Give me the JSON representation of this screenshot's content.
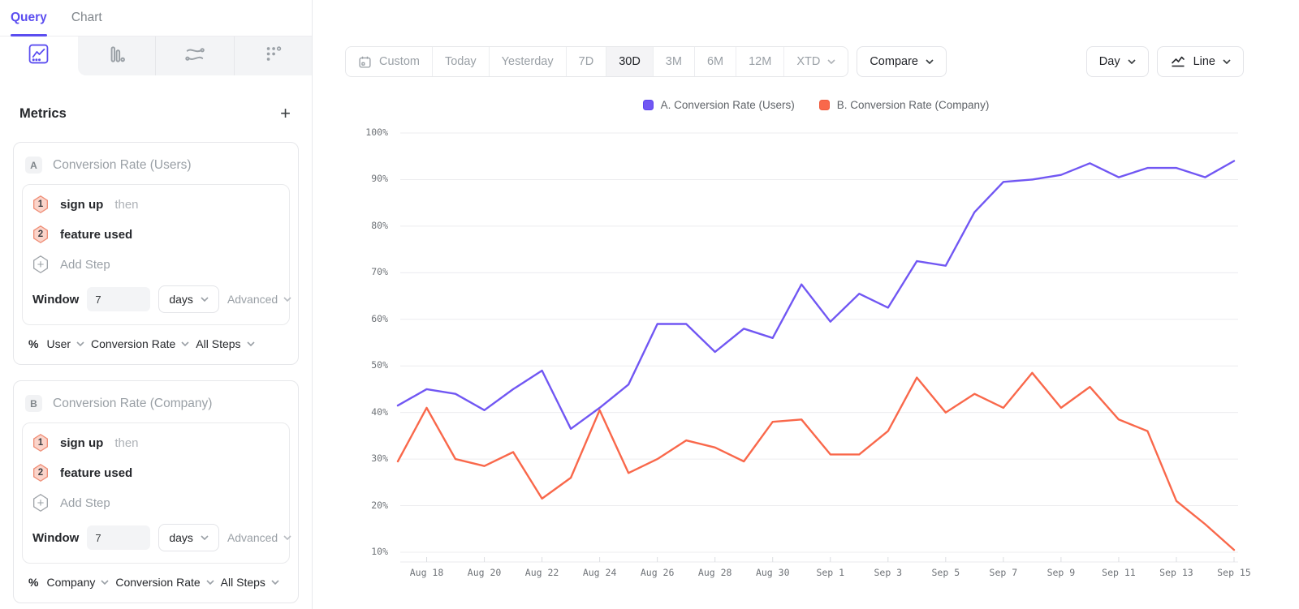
{
  "colors": {
    "accent_purple": "#5b4df0",
    "series_a": "#7157f3",
    "series_b": "#f9684b",
    "grid": "#ececef",
    "axis": "#e8e9ec"
  },
  "sidebar": {
    "tabs": [
      {
        "label": "Query"
      },
      {
        "label": "Chart"
      }
    ],
    "active_tab": "Query",
    "chart_type_tabs": [
      "line-chart",
      "bar-chart",
      "flow-chart",
      "scatter-chart"
    ],
    "metrics": {
      "title": "Metrics",
      "add_label": "+",
      "cards": [
        {
          "badge": "A",
          "title": "Conversion Rate (Users)",
          "steps": [
            {
              "num": "1",
              "label": "sign up",
              "suffix": "then"
            },
            {
              "num": "2",
              "label": "feature used",
              "suffix": ""
            }
          ],
          "add_step": "Add Step",
          "window": {
            "label": "Window",
            "value": "7",
            "unit": "days",
            "advanced": "Advanced"
          },
          "measure": {
            "prefix": "%",
            "entity": "User",
            "metric": "Conversion Rate",
            "scope": "All Steps"
          }
        },
        {
          "badge": "B",
          "title": "Conversion Rate (Company)",
          "steps": [
            {
              "num": "1",
              "label": "sign up",
              "suffix": "then"
            },
            {
              "num": "2",
              "label": "feature used",
              "suffix": ""
            }
          ],
          "add_step": "Add Step",
          "window": {
            "label": "Window",
            "value": "7",
            "unit": "days",
            "advanced": "Advanced"
          },
          "measure": {
            "prefix": "%",
            "entity": "Company",
            "metric": "Conversion Rate",
            "scope": "All Steps"
          }
        }
      ]
    }
  },
  "toolbar": {
    "ranges": [
      {
        "label": "Custom",
        "icon": "calendar"
      },
      {
        "label": "Today"
      },
      {
        "label": "Yesterday"
      },
      {
        "label": "7D"
      },
      {
        "label": "30D"
      },
      {
        "label": "3M"
      },
      {
        "label": "6M"
      },
      {
        "label": "12M"
      },
      {
        "label": "XTD",
        "chevron": true
      }
    ],
    "selected_range": "30D",
    "compare_label": "Compare",
    "granularity_label": "Day",
    "chart_style_label": "Line"
  },
  "legend": [
    {
      "label": "A. Conversion Rate (Users)",
      "color": "#7157f3",
      "border": "#5c43ee"
    },
    {
      "label": "B. Conversion Rate (Company)",
      "color": "#f9684b",
      "border": "#ef5a3c"
    }
  ],
  "chart_data": {
    "type": "line",
    "title": "",
    "x": [
      "Aug 17",
      "Aug 18",
      "Aug 19",
      "Aug 20",
      "Aug 21",
      "Aug 22",
      "Aug 23",
      "Aug 24",
      "Aug 25",
      "Aug 26",
      "Aug 27",
      "Aug 28",
      "Aug 29",
      "Aug 30",
      "Aug 31",
      "Sep 1",
      "Sep 2",
      "Sep 3",
      "Sep 4",
      "Sep 5",
      "Sep 6",
      "Sep 7",
      "Sep 8",
      "Sep 9",
      "Sep 10",
      "Sep 11",
      "Sep 12",
      "Sep 13",
      "Sep 14",
      "Sep 15"
    ],
    "label_start": 1,
    "label_every": 2,
    "y_unit": "%",
    "ylim": [
      10,
      100
    ],
    "y_tick_step": 10,
    "grid": true,
    "legend_position": "top",
    "series": [
      {
        "name": "A. Conversion Rate (Users)",
        "color": "#7157f3",
        "values": [
          41.5,
          45,
          44,
          40.5,
          45,
          49,
          36.5,
          41,
          46,
          59,
          59,
          53,
          58,
          56,
          67.5,
          59.5,
          65.5,
          62.5,
          72.5,
          71.5,
          83,
          89.5,
          90,
          91,
          93.5,
          90.5,
          92.5,
          92.5,
          90.5,
          94
        ]
      },
      {
        "name": "B. Conversion Rate (Company)",
        "color": "#f9684b",
        "values": [
          29.5,
          41,
          30,
          28.5,
          31.5,
          21.5,
          26,
          40.5,
          27,
          30,
          34,
          32.5,
          29.5,
          38,
          38.5,
          31,
          31,
          36,
          47.5,
          40,
          44,
          41,
          48.5,
          41,
          45.5,
          38.5,
          36,
          21,
          16,
          10.5
        ]
      }
    ]
  }
}
